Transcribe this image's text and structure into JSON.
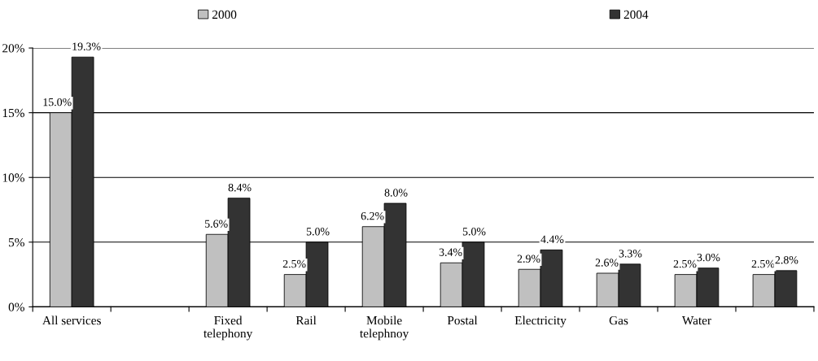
{
  "chart_data": {
    "type": "bar",
    "categories": [
      "All services",
      null,
      "Fixed\ntelephony",
      "Rail",
      "Mobile\ntelephnoy",
      "Postal",
      "Electricity",
      "Gas",
      "Water",
      null
    ],
    "series": [
      {
        "name": "2000",
        "color": "#c0c0c0",
        "values": [
          15.0,
          null,
          5.6,
          2.5,
          6.2,
          3.4,
          2.9,
          2.6,
          2.5,
          2.5
        ],
        "value_labels": [
          "15.0%",
          null,
          "5.6%",
          "2.5%",
          "6.2%",
          "3.4%",
          "2.9%",
          "2.6%",
          "2.5%",
          "2.5%"
        ]
      },
      {
        "name": "2004",
        "color": "#333333",
        "values": [
          19.3,
          null,
          8.4,
          5.0,
          8.0,
          5.0,
          4.4,
          3.3,
          3.0,
          2.8
        ],
        "value_labels": [
          "19.3%",
          null,
          "8.4%",
          "5.0%",
          "8.0%",
          "5.0%",
          "4.4%",
          "3.3%",
          "3.0%",
          "2.8%"
        ]
      }
    ],
    "ylim": [
      0,
      20
    ],
    "yticks": [
      {
        "value": 0,
        "label": "0%"
      },
      {
        "value": 5,
        "label": "5%"
      },
      {
        "value": 10,
        "label": "10%"
      },
      {
        "value": 15,
        "label": "15%"
      },
      {
        "value": 20,
        "label": "20%"
      }
    ],
    "grid": "y",
    "legend": "top"
  }
}
